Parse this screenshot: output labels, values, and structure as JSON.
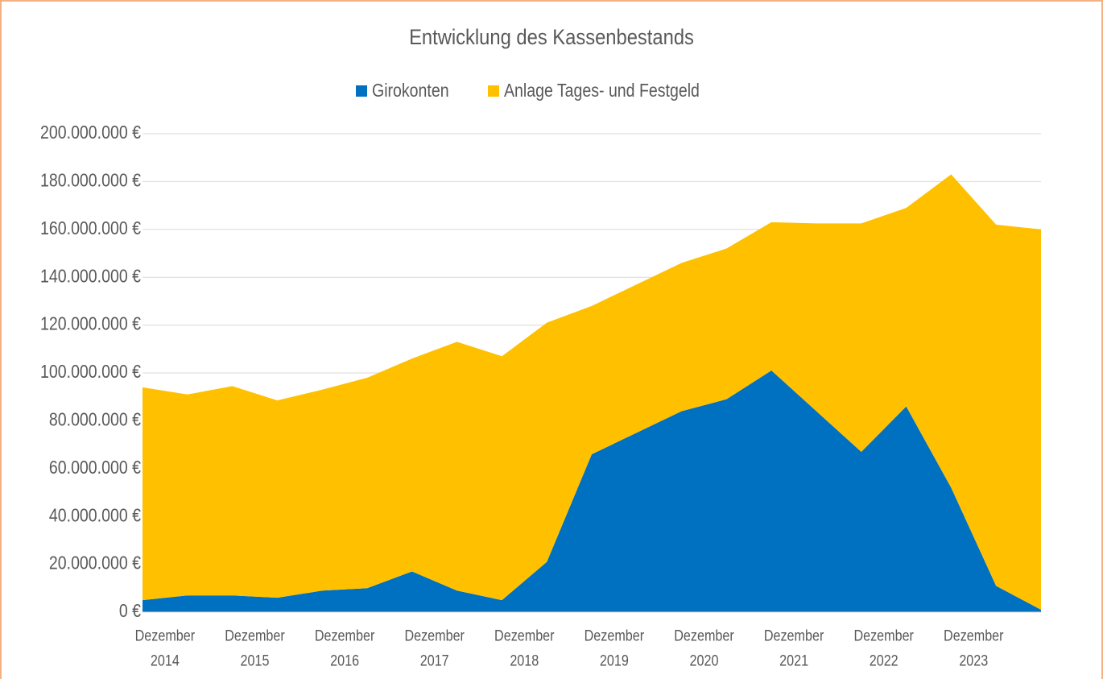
{
  "chart_data": {
    "type": "stacked_area",
    "title": "Entwicklung des Kassenbestands",
    "categories": [
      "Dezember 2014",
      null,
      "Dezember 2015",
      null,
      "Dezember 2016",
      null,
      "Dezember 2017",
      null,
      "Dezember 2018",
      null,
      "Dezember 2019",
      null,
      "Dezember 2020",
      null,
      "Dezember 2021",
      null,
      "Dezember 2022",
      null,
      "Dezember 2023",
      null,
      null
    ],
    "series": [
      {
        "name": "Girokonten",
        "color": "#0070c0",
        "values": [
          5000000,
          7000000,
          7000000,
          6000000,
          9000000,
          10000000,
          17000000,
          9000000,
          5000000,
          21000000,
          66000000,
          75000000,
          84000000,
          89000000,
          101000000,
          84000000,
          67000000,
          86000000,
          52000000,
          11000000,
          1000000
        ]
      },
      {
        "name": "Anlage Tages- und Festgeld",
        "color": "#ffc000",
        "values": [
          89000000,
          84000000,
          87500000,
          82500000,
          84000000,
          88000000,
          89000000,
          104000000,
          102000000,
          100000000,
          62000000,
          62000000,
          62000000,
          63000000,
          62000000,
          78500000,
          95500000,
          83000000,
          131000000,
          151000000,
          159000000
        ]
      }
    ],
    "ylim": [
      0,
      200000000
    ],
    "yticks": [
      {
        "value": 0,
        "label": "0 €"
      },
      {
        "value": 20000000,
        "label": "20.000.000 €"
      },
      {
        "value": 40000000,
        "label": "40.000.000 €"
      },
      {
        "value": 60000000,
        "label": "60.000.000 €"
      },
      {
        "value": 80000000,
        "label": "80.000.000 €"
      },
      {
        "value": 100000000,
        "label": "100.000.000 €"
      },
      {
        "value": 120000000,
        "label": "120.000.000 €"
      },
      {
        "value": 140000000,
        "label": "140.000.000 €"
      },
      {
        "value": 160000000,
        "label": "160.000.000 €"
      },
      {
        "value": 180000000,
        "label": "180.000.000 €"
      },
      {
        "value": 200000000,
        "label": "200.000.000 €"
      }
    ],
    "grid": true,
    "legend": "top"
  }
}
